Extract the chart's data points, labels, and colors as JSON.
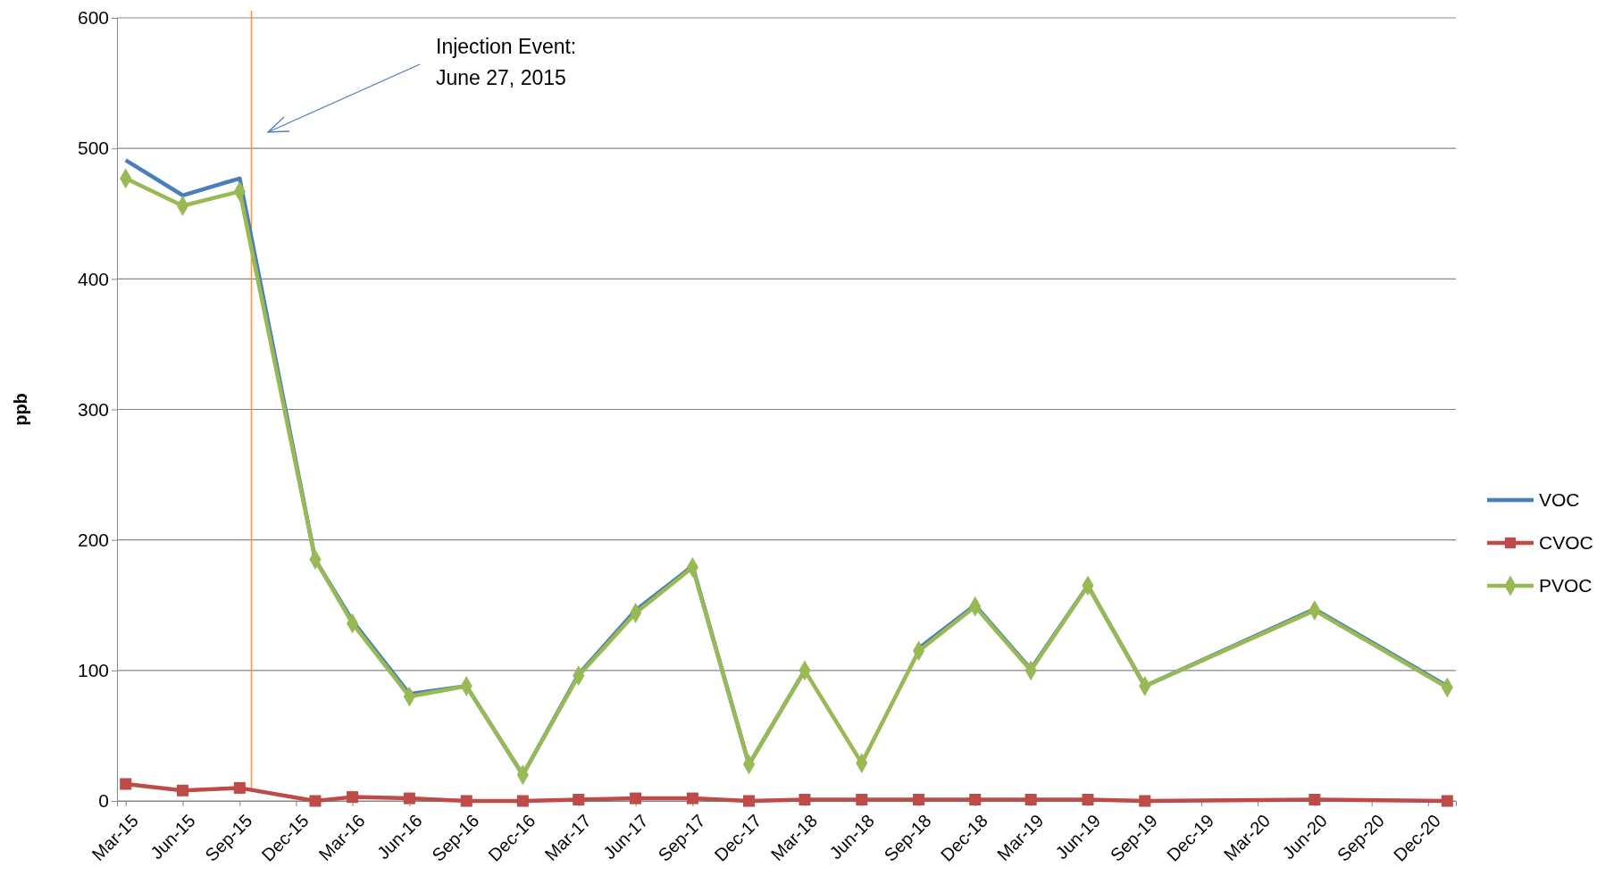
{
  "chart_data": {
    "type": "line",
    "ylabel": "ppb",
    "x": [
      "2015-03",
      "2015-06",
      "2015-09",
      "2016-01",
      "2016-03",
      "2016-06",
      "2016-09",
      "2016-12",
      "2017-03",
      "2017-06",
      "2017-09",
      "2017-12",
      "2018-03",
      "2018-06",
      "2018-09",
      "2018-12",
      "2019-03",
      "2019-06",
      "2019-09",
      "2020-06",
      "2021-01"
    ],
    "series": [
      {
        "name": "VOC",
        "color": "#4a7ebb",
        "marker": "none",
        "values": [
          491,
          464,
          477,
          185,
          138,
          82,
          88,
          20,
          97,
          146,
          180,
          28,
          100,
          null,
          117,
          150,
          101,
          165,
          88,
          147,
          88
        ]
      },
      {
        "name": "CVOC",
        "color": "#be4b48",
        "marker": "square",
        "values": [
          13,
          8,
          10,
          0,
          3,
          2,
          0,
          0,
          1,
          2,
          2,
          0,
          1,
          1,
          1,
          1,
          1,
          1,
          0,
          1,
          0
        ]
      },
      {
        "name": "PVOC",
        "color": "#98b954",
        "marker": "diamond",
        "values": [
          477,
          456,
          467,
          185,
          136,
          80,
          88,
          20,
          96,
          144,
          179,
          28,
          100,
          29,
          115,
          149,
          100,
          165,
          88,
          146,
          87
        ]
      }
    ],
    "xlim": [
      "2015-02-15",
      "2021-01-15"
    ],
    "xticks": [
      {
        "value": "2015-03",
        "label": "Mar-15"
      },
      {
        "value": "2015-06",
        "label": "Jun-15"
      },
      {
        "value": "2015-09",
        "label": "Sep-15"
      },
      {
        "value": "2015-12",
        "label": "Dec-15"
      },
      {
        "value": "2016-03",
        "label": "Mar-16"
      },
      {
        "value": "2016-06",
        "label": "Jun-16"
      },
      {
        "value": "2016-09",
        "label": "Sep-16"
      },
      {
        "value": "2016-12",
        "label": "Dec-16"
      },
      {
        "value": "2017-03",
        "label": "Mar-17"
      },
      {
        "value": "2017-06",
        "label": "Jun-17"
      },
      {
        "value": "2017-09",
        "label": "Sep-17"
      },
      {
        "value": "2017-12",
        "label": "Dec-17"
      },
      {
        "value": "2018-03",
        "label": "Mar-18"
      },
      {
        "value": "2018-06",
        "label": "Jun-18"
      },
      {
        "value": "2018-09",
        "label": "Sep-18"
      },
      {
        "value": "2018-12",
        "label": "Dec-18"
      },
      {
        "value": "2019-03",
        "label": "Mar-19"
      },
      {
        "value": "2019-06",
        "label": "Jun-19"
      },
      {
        "value": "2019-09",
        "label": "Sep-19"
      },
      {
        "value": "2019-12",
        "label": "Dec-19"
      },
      {
        "value": "2020-03",
        "label": "Mar-20"
      },
      {
        "value": "2020-06",
        "label": "Jun-20"
      },
      {
        "value": "2020-09",
        "label": "Sep-20"
      },
      {
        "value": "2020-12",
        "label": "Dec-20"
      }
    ],
    "ylim": [
      0,
      600
    ],
    "yticks": [
      0,
      100,
      200,
      300,
      400,
      500,
      600
    ],
    "grid": "y",
    "legend": "right",
    "ref_lines": [
      {
        "axis": "x",
        "value": "2015-09-20",
        "color": "#f79646"
      }
    ],
    "annotations": [
      "Injection Event:\nJune 27, 2015"
    ]
  }
}
